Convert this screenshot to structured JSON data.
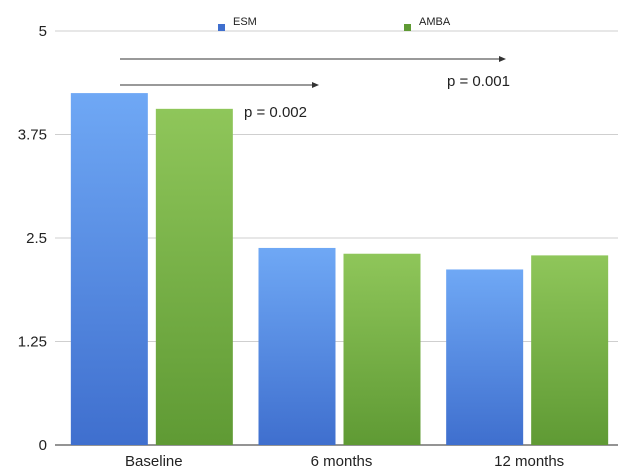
{
  "chart_data": {
    "type": "bar",
    "title": "",
    "xlabel": "",
    "ylabel": "",
    "categories": [
      "Baseline",
      "6 months",
      "12 months"
    ],
    "series": [
      {
        "name": "ESM",
        "values": [
          4.25,
          2.38,
          2.12
        ],
        "color_top": "#6fa8f5",
        "color_bottom": "#3f6fce"
      },
      {
        "name": "AMBA",
        "values": [
          4.06,
          2.31,
          2.29
        ],
        "color_top": "#8fc65a",
        "color_bottom": "#5f9a34"
      }
    ],
    "ylim": [
      0,
      5
    ],
    "yticks": [
      0,
      1.25,
      2.5,
      3.75,
      5
    ],
    "ytick_labels": [
      "0",
      "1.25",
      "2.5",
      "3.75",
      "5"
    ],
    "grid": true,
    "legend_position": "top",
    "annotations": [
      {
        "text": "p = 0.002",
        "from_category": "Baseline",
        "to_category": "6 months"
      },
      {
        "text": "p = 0.001",
        "from_category": "Baseline",
        "to_category": "12 months"
      }
    ]
  }
}
